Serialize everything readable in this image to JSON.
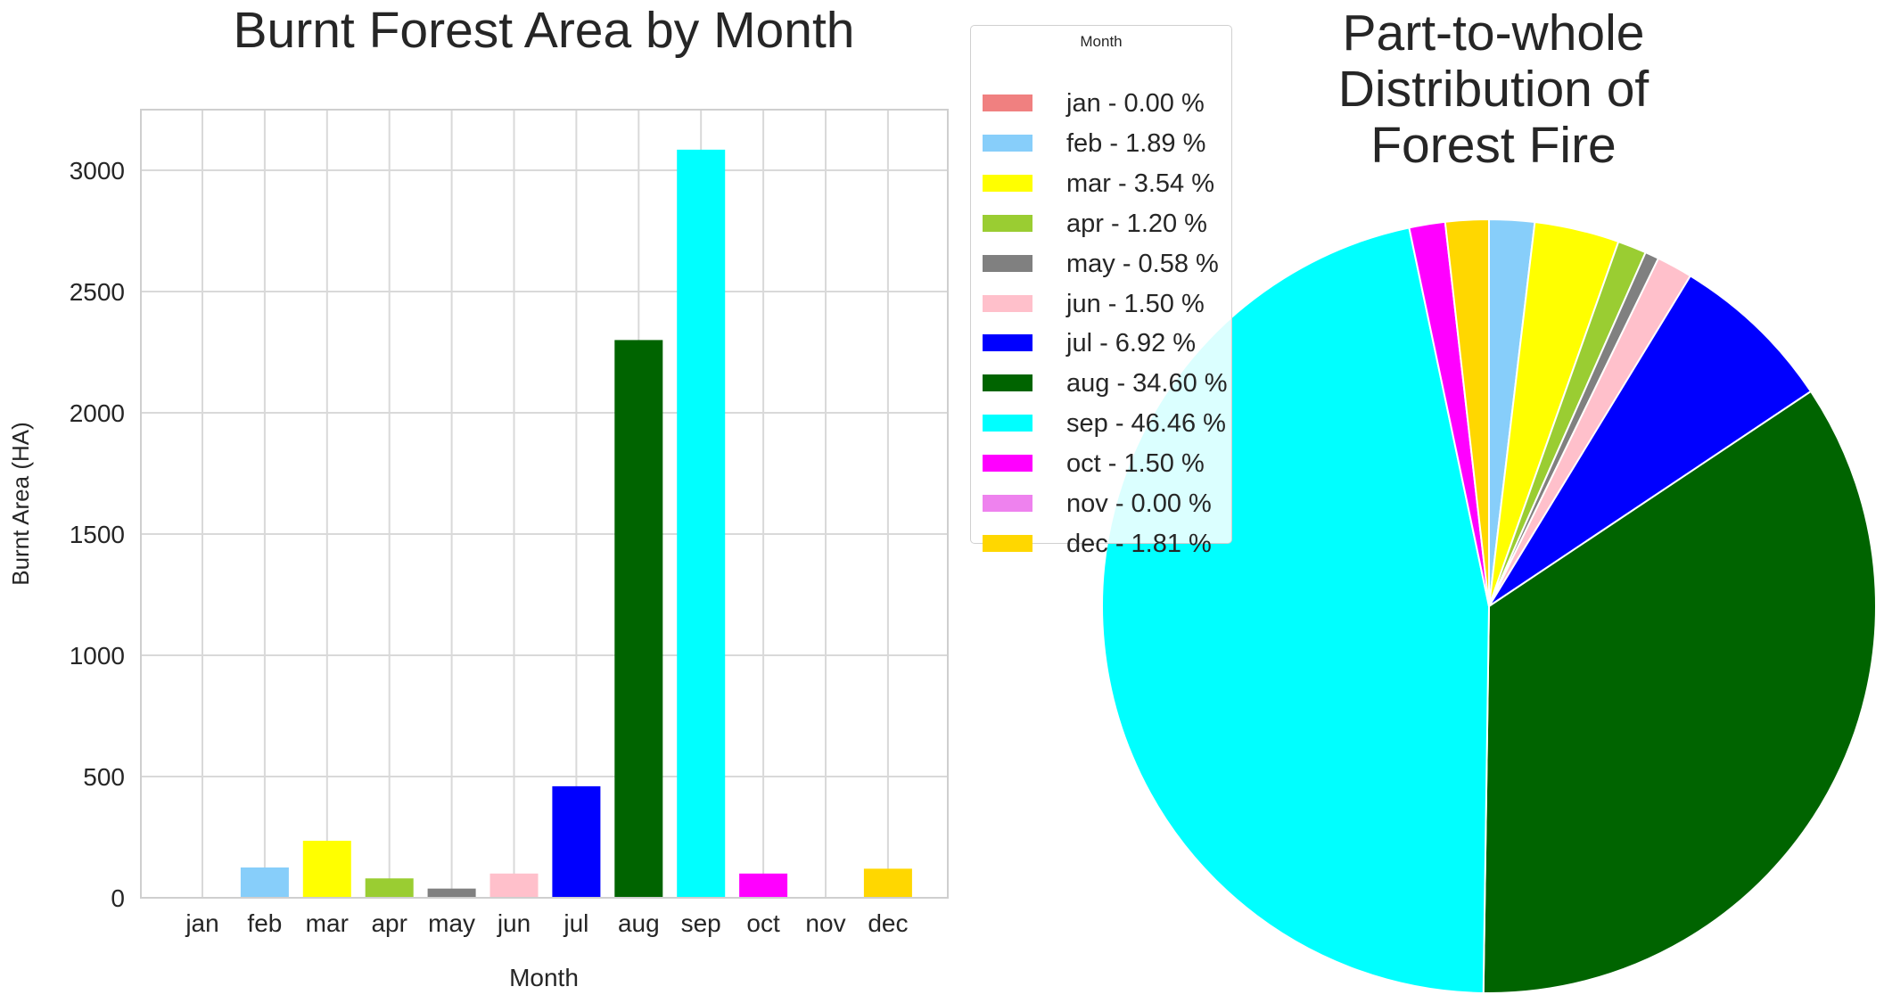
{
  "charts": {
    "bar": {
      "title": "Burnt Forest Area by Month",
      "xlabel": "Month",
      "ylabel": "Burnt Area (HA)"
    },
    "pie": {
      "title_lines": [
        "Part-to-whole",
        "Distribution of",
        "Forest Fire"
      ]
    },
    "legend": {
      "title": "Month",
      "items": [
        {
          "label": "jan - 0.00 %",
          "color": "#f08080"
        },
        {
          "label": "feb - 1.89 %",
          "color": "#87cefa"
        },
        {
          "label": "mar - 3.54 %",
          "color": "#ffff00"
        },
        {
          "label": "apr - 1.20 %",
          "color": "#9acd32"
        },
        {
          "label": "may - 0.58 %",
          "color": "#808080"
        },
        {
          "label": "jun - 1.50 %",
          "color": "#ffc0cb"
        },
        {
          "label": "jul - 6.92 %",
          "color": "#0000ff"
        },
        {
          "label": "aug - 34.60 %",
          "color": "#006400"
        },
        {
          "label": "sep - 46.46 %",
          "color": "#00ffff"
        },
        {
          "label": "oct - 1.50 %",
          "color": "#ff00ff"
        },
        {
          "label": "nov - 0.00 %",
          "color": "#ee82ee"
        },
        {
          "label": "dec - 1.81 %",
          "color": "#ffd700"
        }
      ]
    }
  },
  "chart_data": [
    {
      "type": "bar",
      "title": "Burnt Forest Area by Month",
      "xlabel": "Month",
      "ylabel": "Burnt Area (HA)",
      "categories": [
        "jan",
        "feb",
        "mar",
        "apr",
        "may",
        "jun",
        "jul",
        "aug",
        "sep",
        "oct",
        "nov",
        "dec"
      ],
      "values": [
        0,
        125,
        235,
        80,
        38,
        100,
        460,
        2300,
        3085,
        100,
        0,
        120
      ],
      "colors": [
        "#f08080",
        "#87cefa",
        "#ffff00",
        "#9acd32",
        "#808080",
        "#ffc0cb",
        "#0000ff",
        "#006400",
        "#00ffff",
        "#ff00ff",
        "#ee82ee",
        "#ffd700"
      ],
      "yticks": [
        0,
        500,
        1000,
        1500,
        2000,
        2500,
        3000
      ],
      "ylim": [
        0,
        3250
      ],
      "grid": true
    },
    {
      "type": "pie",
      "title": "Part-to-whole Distribution of Forest Fire",
      "categories": [
        "jan",
        "feb",
        "mar",
        "apr",
        "may",
        "jun",
        "jul",
        "aug",
        "sep",
        "oct",
        "nov",
        "dec"
      ],
      "values": [
        0.0,
        1.89,
        3.54,
        1.2,
        0.58,
        1.5,
        6.92,
        34.6,
        46.46,
        1.5,
        0.0,
        1.81
      ],
      "colors": [
        "#f08080",
        "#87cefa",
        "#ffff00",
        "#9acd32",
        "#808080",
        "#ffc0cb",
        "#0000ff",
        "#006400",
        "#00ffff",
        "#ff00ff",
        "#ee82ee",
        "#ffd700"
      ],
      "start_angle": "top",
      "direction": "clockwise",
      "legend_position": "top-left"
    }
  ]
}
